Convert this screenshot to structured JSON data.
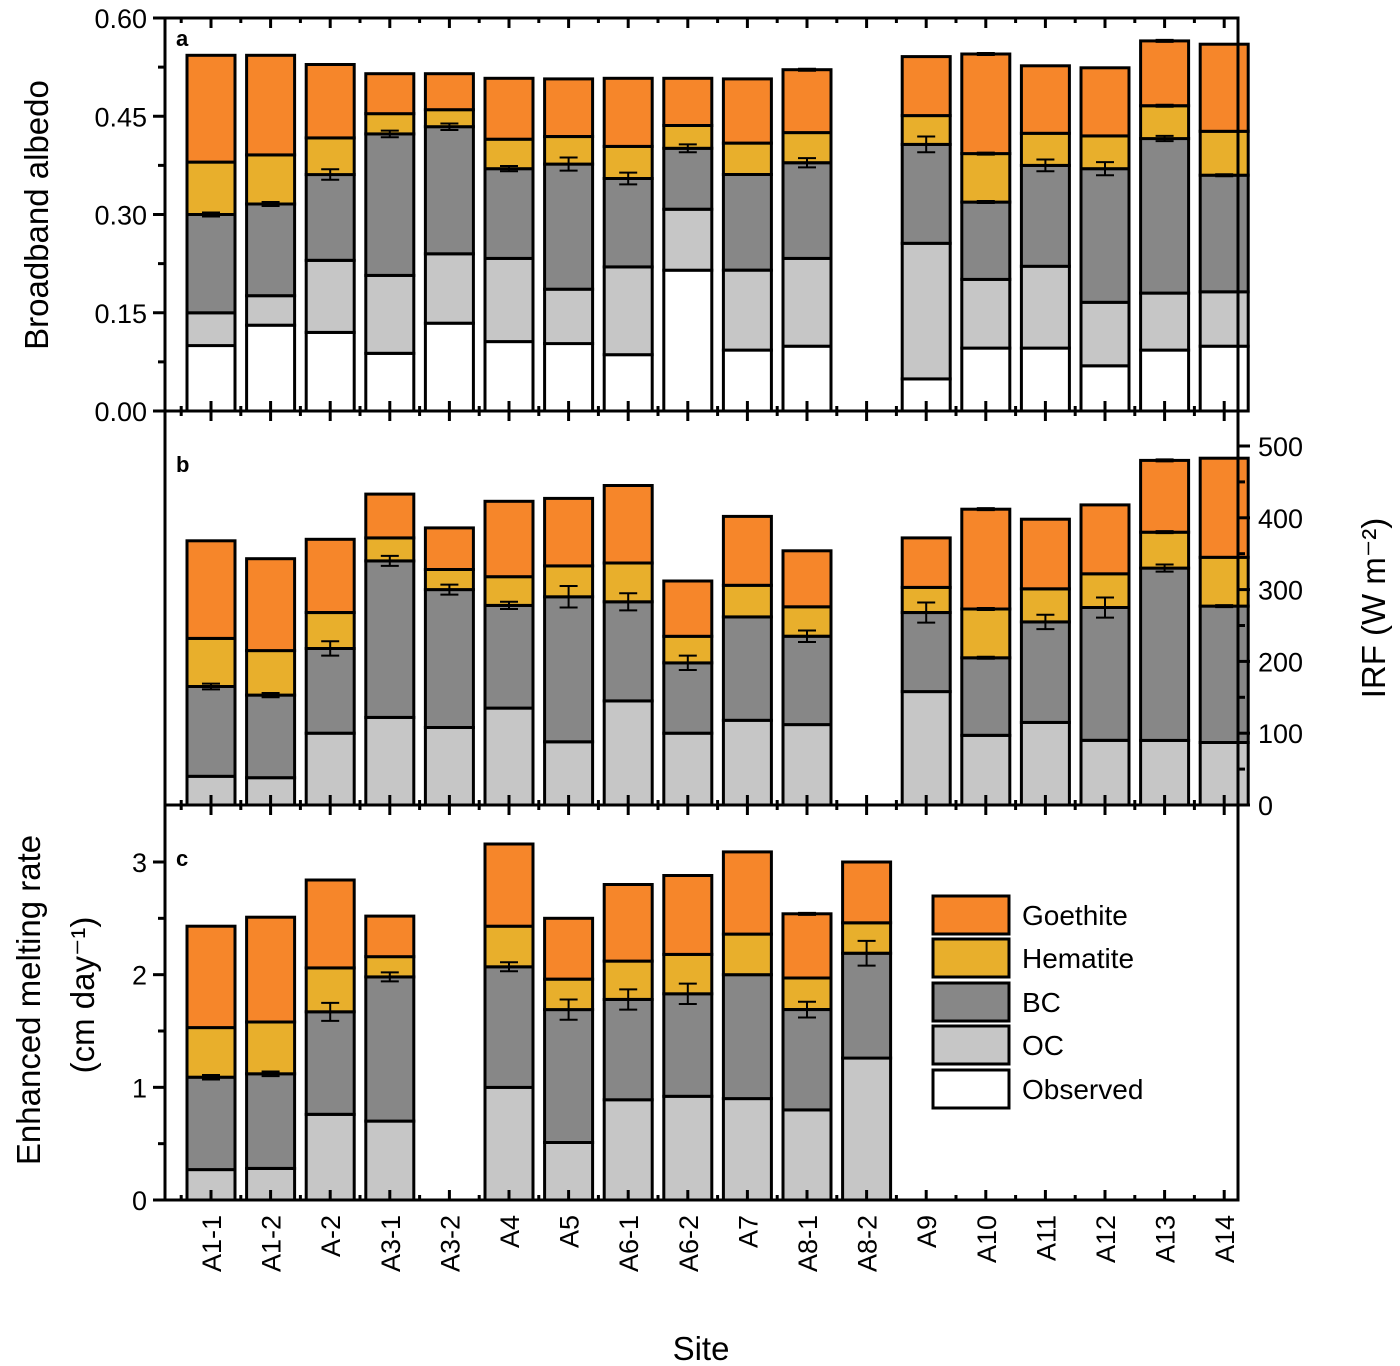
{
  "chart_data": {
    "type": "bar",
    "stacked": true,
    "categories": [
      "A1-1",
      "A1-2",
      "A-2",
      "A3-1",
      "A3-2",
      "A4",
      "A5",
      "A6-1",
      "A6-2",
      "A7",
      "A8-1",
      "A8-2",
      "A9",
      "A10",
      "A11",
      "A12",
      "A13",
      "A14"
    ],
    "xlabel": "Site",
    "legend": {
      "placement": "inside panel c, right",
      "entries": [
        {
          "key": "goethite",
          "label": "Goethite",
          "color": "#F6862A"
        },
        {
          "key": "hematite",
          "label": "Hematite",
          "color": "#E8AF2C"
        },
        {
          "key": "bc",
          "label": "BC",
          "color": "#878787"
        },
        {
          "key": "oc",
          "label": "OC",
          "color": "#C6C6C6"
        },
        {
          "key": "observed",
          "label": "Observed",
          "color": "#FFFFFF"
        }
      ]
    },
    "panels": [
      {
        "letter": "a",
        "ylabel": "Broadband albedo",
        "y_axis_side": "left",
        "ylim": [
          0,
          0.6
        ],
        "ticks": [
          0.0,
          0.15,
          0.3,
          0.45,
          0.6
        ],
        "tick_labels": [
          "0.00",
          "0.15",
          "0.30",
          "0.45",
          "0.60"
        ],
        "minor_ticks": [
          0.075,
          0.225,
          0.375,
          0.525
        ],
        "note": "cumulative stack tops (observed, +OC, +BC, +Hematite, +Goethite)",
        "series": [
          {
            "key": "observed",
            "name": "Observed",
            "values": [
              0.1,
              0.131,
              0.12,
              0.088,
              0.134,
              0.106,
              0.103,
              0.086,
              0.215,
              0.093,
              0.099,
              null,
              0.049,
              0.096,
              0.096,
              0.069,
              0.093,
              0.099
            ]
          },
          {
            "key": "oc",
            "name": "OC",
            "values": [
              0.15,
              0.176,
              0.23,
              0.207,
              0.24,
              0.233,
              0.186,
              0.22,
              0.308,
              0.215,
              0.233,
              null,
              0.256,
              0.201,
              0.221,
              0.166,
              0.18,
              0.182
            ]
          },
          {
            "key": "bc",
            "name": "BC",
            "values": [
              0.3,
              0.316,
              0.361,
              0.423,
              0.434,
              0.37,
              0.377,
              0.355,
              0.401,
              0.361,
              0.379,
              null,
              0.407,
              0.319,
              0.375,
              0.37,
              0.416,
              0.36
            ]
          },
          {
            "key": "hematite",
            "name": "Hematite",
            "values": [
              0.38,
              0.391,
              0.417,
              0.454,
              0.46,
              0.415,
              0.419,
              0.404,
              0.436,
              0.409,
              0.425,
              null,
              0.451,
              0.393,
              0.424,
              0.42,
              0.466,
              0.427
            ]
          },
          {
            "key": "goethite",
            "name": "Goethite",
            "values": [
              0.543,
              0.543,
              0.529,
              0.515,
              0.515,
              0.508,
              0.507,
              0.508,
              0.508,
              0.507,
              0.521,
              null,
              0.541,
              0.545,
              0.527,
              0.524,
              0.565,
              0.56
            ]
          }
        ],
        "error_bars": [
          {
            "category": "A1-1",
            "at": "bc",
            "err": 0.003
          },
          {
            "category": "A1-2",
            "at": "bc",
            "err": 0.003
          },
          {
            "category": "A-2",
            "at": "bc",
            "err": 0.008
          },
          {
            "category": "A3-1",
            "at": "bc",
            "err": 0.005
          },
          {
            "category": "A3-2",
            "at": "bc",
            "err": 0.005
          },
          {
            "category": "A4",
            "at": "bc",
            "err": 0.004
          },
          {
            "category": "A5",
            "at": "bc",
            "err": 0.01
          },
          {
            "category": "A6-1",
            "at": "bc",
            "err": 0.009
          },
          {
            "category": "A6-2",
            "at": "bc",
            "err": 0.006
          },
          {
            "category": "A8-1",
            "at": "bc",
            "err": 0.007
          },
          {
            "category": "A8-1",
            "at": "goethite",
            "err": 0.001
          },
          {
            "category": "A9",
            "at": "bc",
            "err": 0.012
          },
          {
            "category": "A10",
            "at": "bc",
            "err": 0.001
          },
          {
            "category": "A10",
            "at": "hematite",
            "err": 0.001
          },
          {
            "category": "A10",
            "at": "goethite",
            "err": 0.001
          },
          {
            "category": "A11",
            "at": "bc",
            "err": 0.009
          },
          {
            "category": "A12",
            "at": "bc",
            "err": 0.01
          },
          {
            "category": "A13",
            "at": "bc",
            "err": 0.004
          },
          {
            "category": "A13",
            "at": "hematite",
            "err": 0.001
          },
          {
            "category": "A13",
            "at": "goethite",
            "err": 0.001
          },
          {
            "category": "A14",
            "at": "bc",
            "err": 0.001
          }
        ]
      },
      {
        "letter": "b",
        "ylabel": "IRF (W m⁻²)",
        "y_axis_side": "right",
        "ylim": [
          0,
          550
        ],
        "ticks": [
          0,
          100,
          200,
          300,
          400,
          500
        ],
        "tick_labels": [
          "0",
          "100",
          "200",
          "300",
          "400",
          "500"
        ],
        "minor_ticks": [
          50,
          150,
          250,
          350,
          450
        ],
        "note": "cumulative stack tops (OC, +BC, +Hematite, +Goethite)",
        "series": [
          {
            "key": "oc",
            "name": "OC",
            "values": [
              40,
              38,
              100,
              122,
              108,
              135,
              88,
              145,
              100,
              118,
              112,
              null,
              158,
              97,
              115,
              90,
              90,
              87
            ]
          },
          {
            "key": "bc",
            "name": "BC",
            "values": [
              165,
              153,
              218,
              340,
              300,
              278,
              290,
              283,
              198,
              262,
              235,
              null,
              268,
              205,
              255,
              275,
              330,
              277
            ]
          },
          {
            "key": "hematite",
            "name": "Hematite",
            "values": [
              232,
              215,
              268,
              372,
              328,
              318,
              333,
              337,
              235,
              306,
              276,
              null,
              303,
              273,
              301,
              322,
              380,
              345
            ]
          },
          {
            "key": "goethite",
            "name": "Goethite",
            "values": [
              368,
              343,
              370,
              433,
              386,
              423,
              427,
              445,
              312,
              402,
              354,
              null,
              372,
              412,
              398,
              418,
              480,
              483
            ]
          }
        ],
        "error_bars": [
          {
            "category": "A1-1",
            "at": "bc",
            "err": 4
          },
          {
            "category": "A1-2",
            "at": "bc",
            "err": 3
          },
          {
            "category": "A-2",
            "at": "bc",
            "err": 10
          },
          {
            "category": "A3-1",
            "at": "bc",
            "err": 7
          },
          {
            "category": "A3-2",
            "at": "bc",
            "err": 7
          },
          {
            "category": "A4",
            "at": "bc",
            "err": 5
          },
          {
            "category": "A5",
            "at": "bc",
            "err": 15
          },
          {
            "category": "A6-1",
            "at": "bc",
            "err": 12
          },
          {
            "category": "A6-2",
            "at": "bc",
            "err": 10
          },
          {
            "category": "A8-1",
            "at": "bc",
            "err": 8
          },
          {
            "category": "A9",
            "at": "bc",
            "err": 14
          },
          {
            "category": "A10",
            "at": "bc",
            "err": 1
          },
          {
            "category": "A10",
            "at": "hematite",
            "err": 1
          },
          {
            "category": "A10",
            "at": "goethite",
            "err": 1
          },
          {
            "category": "A11",
            "at": "bc",
            "err": 10
          },
          {
            "category": "A12",
            "at": "bc",
            "err": 14
          },
          {
            "category": "A13",
            "at": "bc",
            "err": 5
          },
          {
            "category": "A13",
            "at": "hematite",
            "err": 1
          },
          {
            "category": "A13",
            "at": "goethite",
            "err": 1
          },
          {
            "category": "A14",
            "at": "bc",
            "err": 1
          }
        ]
      },
      {
        "letter": "c",
        "ylabel": "Enhanced melting rate",
        "ylabel2": "(cm day⁻¹)",
        "y_axis_side": "left",
        "ylim": [
          0,
          3.5
        ],
        "ticks": [
          0,
          1,
          2,
          3
        ],
        "tick_labels": [
          "0",
          "1",
          "2",
          "3"
        ],
        "minor_ticks": [
          0.5,
          1.5,
          2.5
        ],
        "note": "cumulative stack tops (OC, +BC, +Hematite, +Goethite); sites A3-2 and A9-A14 have no bars",
        "series": [
          {
            "key": "oc",
            "name": "OC",
            "values": [
              0.27,
              0.28,
              0.76,
              0.7,
              null,
              1.0,
              0.51,
              0.89,
              0.92,
              0.9,
              0.8,
              1.26,
              null,
              null,
              null,
              null,
              null,
              null
            ]
          },
          {
            "key": "bc",
            "name": "BC",
            "values": [
              1.09,
              1.12,
              1.67,
              1.98,
              null,
              2.07,
              1.69,
              1.78,
              1.83,
              2.0,
              1.69,
              2.19,
              null,
              null,
              null,
              null,
              null,
              null
            ]
          },
          {
            "key": "hematite",
            "name": "Hematite",
            "values": [
              1.53,
              1.58,
              2.06,
              2.16,
              null,
              2.43,
              1.96,
              2.12,
              2.18,
              2.36,
              1.97,
              2.46,
              null,
              null,
              null,
              null,
              null,
              null
            ]
          },
          {
            "key": "goethite",
            "name": "Goethite",
            "values": [
              2.43,
              2.51,
              2.84,
              2.52,
              null,
              3.16,
              2.5,
              2.8,
              2.88,
              3.09,
              2.54,
              3.0,
              null,
              null,
              null,
              null,
              null,
              null
            ]
          }
        ],
        "error_bars": [
          {
            "category": "A1-1",
            "at": "bc",
            "err": 0.02
          },
          {
            "category": "A1-2",
            "at": "bc",
            "err": 0.02
          },
          {
            "category": "A-2",
            "at": "bc",
            "err": 0.08
          },
          {
            "category": "A3-1",
            "at": "bc",
            "err": 0.04
          },
          {
            "category": "A4",
            "at": "bc",
            "err": 0.04
          },
          {
            "category": "A5",
            "at": "bc",
            "err": 0.09
          },
          {
            "category": "A6-1",
            "at": "bc",
            "err": 0.09
          },
          {
            "category": "A6-2",
            "at": "bc",
            "err": 0.09
          },
          {
            "category": "A8-1",
            "at": "bc",
            "err": 0.07
          },
          {
            "category": "A8-1",
            "at": "goethite",
            "err": 0.005
          },
          {
            "category": "A8-2",
            "at": "bc",
            "err": 0.11
          }
        ]
      }
    ]
  }
}
